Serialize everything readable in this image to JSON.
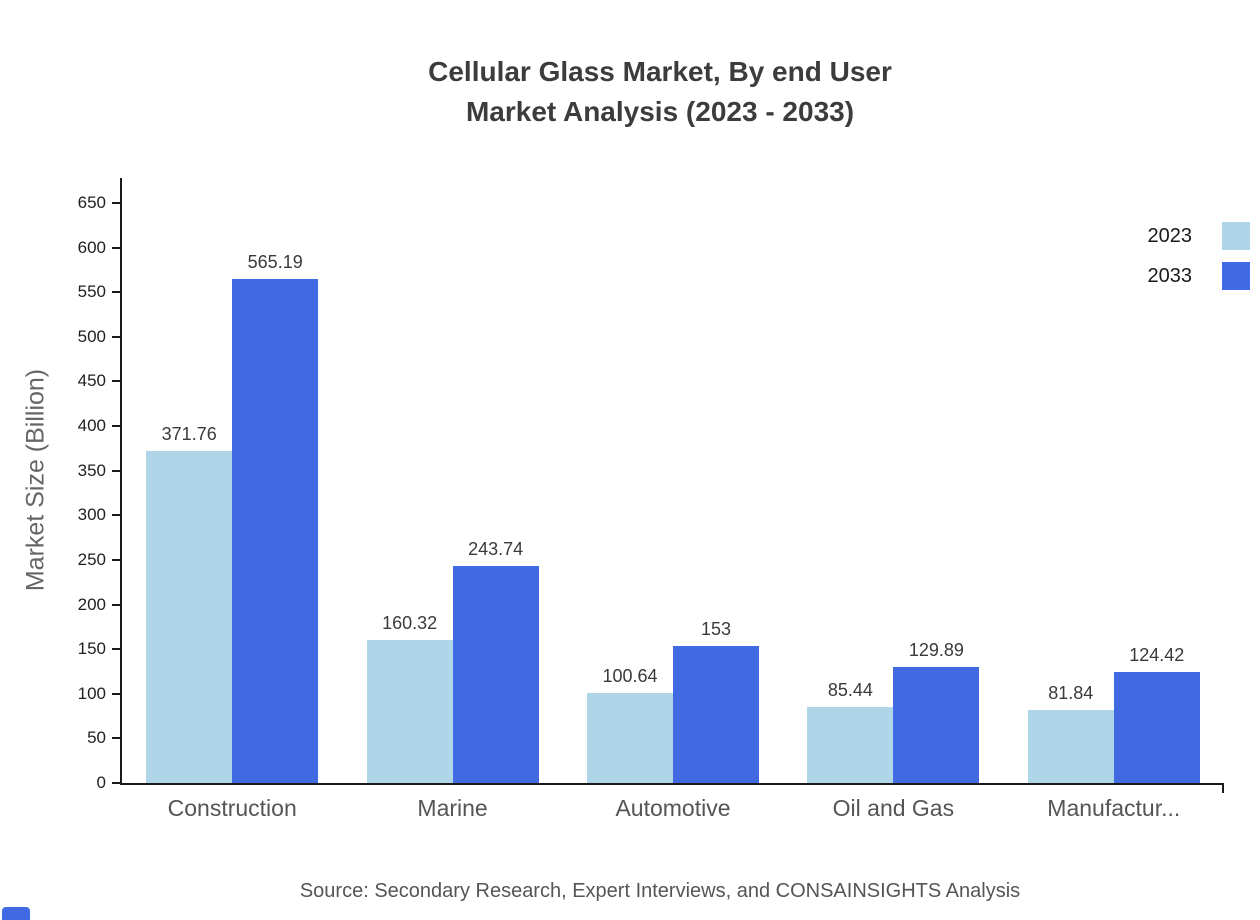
{
  "title": {
    "line1": "Cellular Glass Market, By end User",
    "line2": "Market Analysis (2023 - 2033)"
  },
  "source_text": "Source: Secondary Research, Expert Interviews, and CONSAINSIGHTS Analysis",
  "chart_data": {
    "type": "bar",
    "title": "Cellular Glass Market, By end User Market Analysis (2023 - 2033)",
    "categories": [
      "Construction",
      "Marine",
      "Automotive",
      "Oil and Gas",
      "Manufactur..."
    ],
    "series": [
      {
        "name": "2023",
        "color": "#aed6e8",
        "values": [
          371.76,
          160.32,
          100.64,
          85.44,
          81.84
        ]
      },
      {
        "name": "2033",
        "color": "#4169e1",
        "values": [
          565.19,
          243.74,
          153,
          129.89,
          124.42
        ]
      }
    ],
    "xlabel": "",
    "ylabel": "Market Size (Billion)",
    "ylim": [
      0,
      650
    ],
    "yticks": [
      0,
      50,
      100,
      150,
      200,
      250,
      300,
      350,
      400,
      450,
      500,
      550,
      600,
      650
    ],
    "grid": false,
    "legend_position": "top-right"
  }
}
